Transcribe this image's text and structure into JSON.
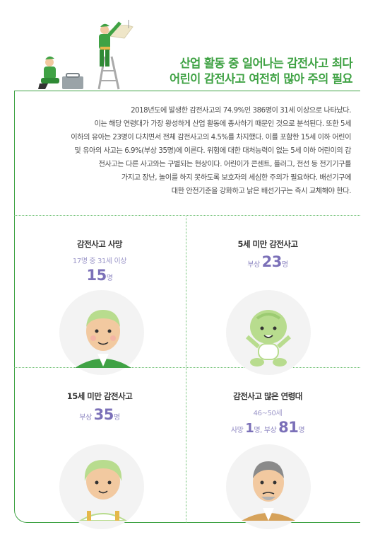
{
  "header": {
    "title_line1": "산업 활동 중 일어나는 감전사고 최다",
    "title_line2": "어린이 감전사고 여전히 많아 주의 필요"
  },
  "body_lines": [
    "2018년도에 발생한 감전사고의 74.9%인 386명이 31세 이상으로 나타났다.",
    "이는 해당 연령대가 가장 왕성하게 산업 활동에 종사하기 때문인 것으로 분석된다. 또한 5세",
    "이하의 유아는 23명이 다치면서 전체 감전사고의 4.5%를 차지했다. 이를 포함한 15세 이하 어린이",
    "및 유아의 사고는 6.9%(부상 35명)에 이른다. 위험에 대한 대처능력이 없는 5세 이하 어린이의 감",
    "전사고는 다른 사고와는 구별되는 현상이다. 어린이가 콘센트, 플러그, 전선 등 전기기구를",
    "가지고 장난, 놀이를 하지 못하도록 보호자의 세심한 주의가 필요하다. 배선기구에",
    "대한 안전기준을 강화하고 낡은 배선기구는 즉시 교체해야 한다."
  ],
  "panels": {
    "p1": {
      "title": "감전사고 사망",
      "sub": "17명 중 31세 이상",
      "num": "15",
      "unit": "명"
    },
    "p2": {
      "title": "5세 미만 감전사고",
      "prefix": "부상 ",
      "num": "23",
      "unit": "명"
    },
    "p3": {
      "title": "15세 미만 감전사고",
      "prefix": "부상 ",
      "num": "35",
      "unit": "명"
    },
    "p4": {
      "title": "감전사고 많은 연령대",
      "sub": "46~50세",
      "death_prefix": "사망 ",
      "death_num": "1",
      "death_unit": "명,",
      "injury_prefix": " 부상 ",
      "injury_num": "81",
      "injury_unit": "명"
    }
  },
  "colors": {
    "accent_green": "#3fa244",
    "stat_purple": "#7b70b8",
    "dotted": "#6dbf72"
  }
}
